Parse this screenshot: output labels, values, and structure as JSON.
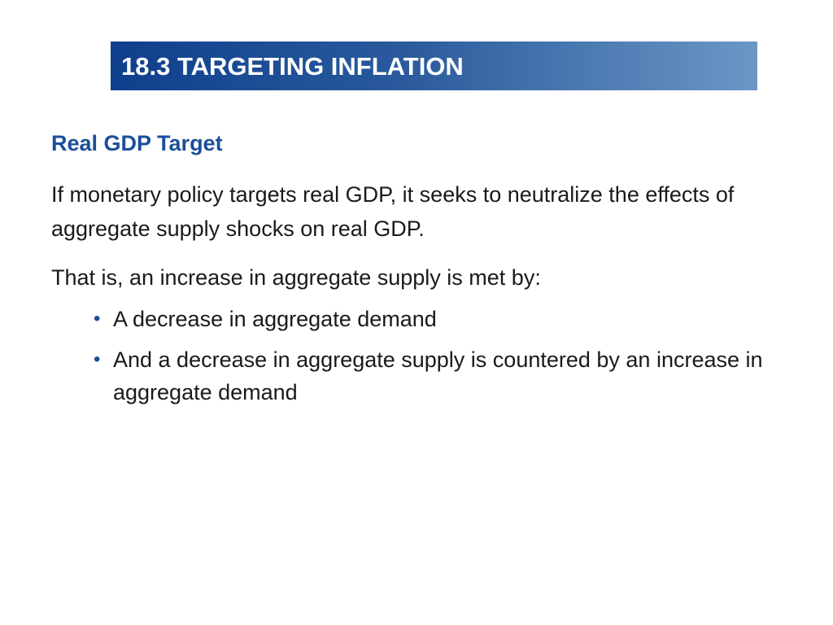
{
  "header": {
    "title": "18.3 TARGETING INFLATION"
  },
  "content": {
    "subheading": "Real GDP Target",
    "paragraph_1": "If monetary policy targets real GDP, it seeks to neutralize the effects of aggregate supply shocks on real GDP.",
    "paragraph_2": "That is, an increase in aggregate supply is met by:",
    "bullets": [
      {
        "marker": "•",
        "text": "A decrease in aggregate demand"
      },
      {
        "marker": "•",
        "text": "And a decrease in aggregate supply is countered by an increase in aggregate demand"
      }
    ]
  },
  "colors": {
    "title_bar_start": "#0f3f8c",
    "title_bar_end": "#6a97c6",
    "subheading": "#1a4f9a",
    "body_text": "#1a1a1a"
  }
}
